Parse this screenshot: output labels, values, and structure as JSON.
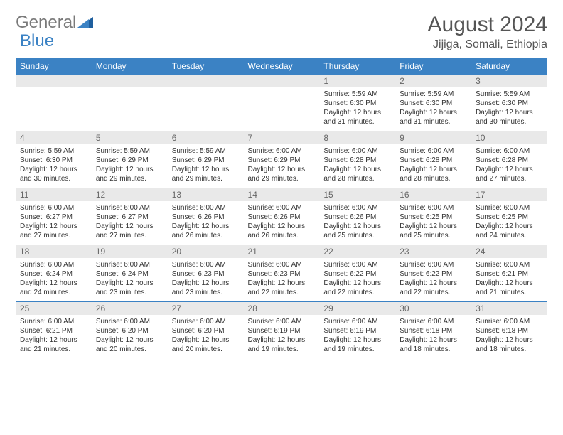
{
  "logo": {
    "text1": "General",
    "text2": "Blue",
    "color1": "#7a7a7a",
    "color2": "#3b82c4"
  },
  "header": {
    "title": "August 2024",
    "location": "Jijiga, Somali, Ethiopia"
  },
  "calendar": {
    "daynames": [
      "Sunday",
      "Monday",
      "Tuesday",
      "Wednesday",
      "Thursday",
      "Friday",
      "Saturday"
    ],
    "header_bg": "#3b82c4",
    "header_fg": "#ffffff",
    "daynum_bg": "#e9e9e9",
    "border_color": "#3b82c4",
    "weeks": [
      [
        null,
        null,
        null,
        null,
        {
          "n": "1",
          "sr": "5:59 AM",
          "ss": "6:30 PM",
          "dl": "12 hours and 31 minutes."
        },
        {
          "n": "2",
          "sr": "5:59 AM",
          "ss": "6:30 PM",
          "dl": "12 hours and 31 minutes."
        },
        {
          "n": "3",
          "sr": "5:59 AM",
          "ss": "6:30 PM",
          "dl": "12 hours and 30 minutes."
        }
      ],
      [
        {
          "n": "4",
          "sr": "5:59 AM",
          "ss": "6:30 PM",
          "dl": "12 hours and 30 minutes."
        },
        {
          "n": "5",
          "sr": "5:59 AM",
          "ss": "6:29 PM",
          "dl": "12 hours and 29 minutes."
        },
        {
          "n": "6",
          "sr": "5:59 AM",
          "ss": "6:29 PM",
          "dl": "12 hours and 29 minutes."
        },
        {
          "n": "7",
          "sr": "6:00 AM",
          "ss": "6:29 PM",
          "dl": "12 hours and 29 minutes."
        },
        {
          "n": "8",
          "sr": "6:00 AM",
          "ss": "6:28 PM",
          "dl": "12 hours and 28 minutes."
        },
        {
          "n": "9",
          "sr": "6:00 AM",
          "ss": "6:28 PM",
          "dl": "12 hours and 28 minutes."
        },
        {
          "n": "10",
          "sr": "6:00 AM",
          "ss": "6:28 PM",
          "dl": "12 hours and 27 minutes."
        }
      ],
      [
        {
          "n": "11",
          "sr": "6:00 AM",
          "ss": "6:27 PM",
          "dl": "12 hours and 27 minutes."
        },
        {
          "n": "12",
          "sr": "6:00 AM",
          "ss": "6:27 PM",
          "dl": "12 hours and 27 minutes."
        },
        {
          "n": "13",
          "sr": "6:00 AM",
          "ss": "6:26 PM",
          "dl": "12 hours and 26 minutes."
        },
        {
          "n": "14",
          "sr": "6:00 AM",
          "ss": "6:26 PM",
          "dl": "12 hours and 26 minutes."
        },
        {
          "n": "15",
          "sr": "6:00 AM",
          "ss": "6:26 PM",
          "dl": "12 hours and 25 minutes."
        },
        {
          "n": "16",
          "sr": "6:00 AM",
          "ss": "6:25 PM",
          "dl": "12 hours and 25 minutes."
        },
        {
          "n": "17",
          "sr": "6:00 AM",
          "ss": "6:25 PM",
          "dl": "12 hours and 24 minutes."
        }
      ],
      [
        {
          "n": "18",
          "sr": "6:00 AM",
          "ss": "6:24 PM",
          "dl": "12 hours and 24 minutes."
        },
        {
          "n": "19",
          "sr": "6:00 AM",
          "ss": "6:24 PM",
          "dl": "12 hours and 23 minutes."
        },
        {
          "n": "20",
          "sr": "6:00 AM",
          "ss": "6:23 PM",
          "dl": "12 hours and 23 minutes."
        },
        {
          "n": "21",
          "sr": "6:00 AM",
          "ss": "6:23 PM",
          "dl": "12 hours and 22 minutes."
        },
        {
          "n": "22",
          "sr": "6:00 AM",
          "ss": "6:22 PM",
          "dl": "12 hours and 22 minutes."
        },
        {
          "n": "23",
          "sr": "6:00 AM",
          "ss": "6:22 PM",
          "dl": "12 hours and 22 minutes."
        },
        {
          "n": "24",
          "sr": "6:00 AM",
          "ss": "6:21 PM",
          "dl": "12 hours and 21 minutes."
        }
      ],
      [
        {
          "n": "25",
          "sr": "6:00 AM",
          "ss": "6:21 PM",
          "dl": "12 hours and 21 minutes."
        },
        {
          "n": "26",
          "sr": "6:00 AM",
          "ss": "6:20 PM",
          "dl": "12 hours and 20 minutes."
        },
        {
          "n": "27",
          "sr": "6:00 AM",
          "ss": "6:20 PM",
          "dl": "12 hours and 20 minutes."
        },
        {
          "n": "28",
          "sr": "6:00 AM",
          "ss": "6:19 PM",
          "dl": "12 hours and 19 minutes."
        },
        {
          "n": "29",
          "sr": "6:00 AM",
          "ss": "6:19 PM",
          "dl": "12 hours and 19 minutes."
        },
        {
          "n": "30",
          "sr": "6:00 AM",
          "ss": "6:18 PM",
          "dl": "12 hours and 18 minutes."
        },
        {
          "n": "31",
          "sr": "6:00 AM",
          "ss": "6:18 PM",
          "dl": "12 hours and 18 minutes."
        }
      ]
    ],
    "labels": {
      "sunrise": "Sunrise:",
      "sunset": "Sunset:",
      "daylight": "Daylight:"
    }
  }
}
